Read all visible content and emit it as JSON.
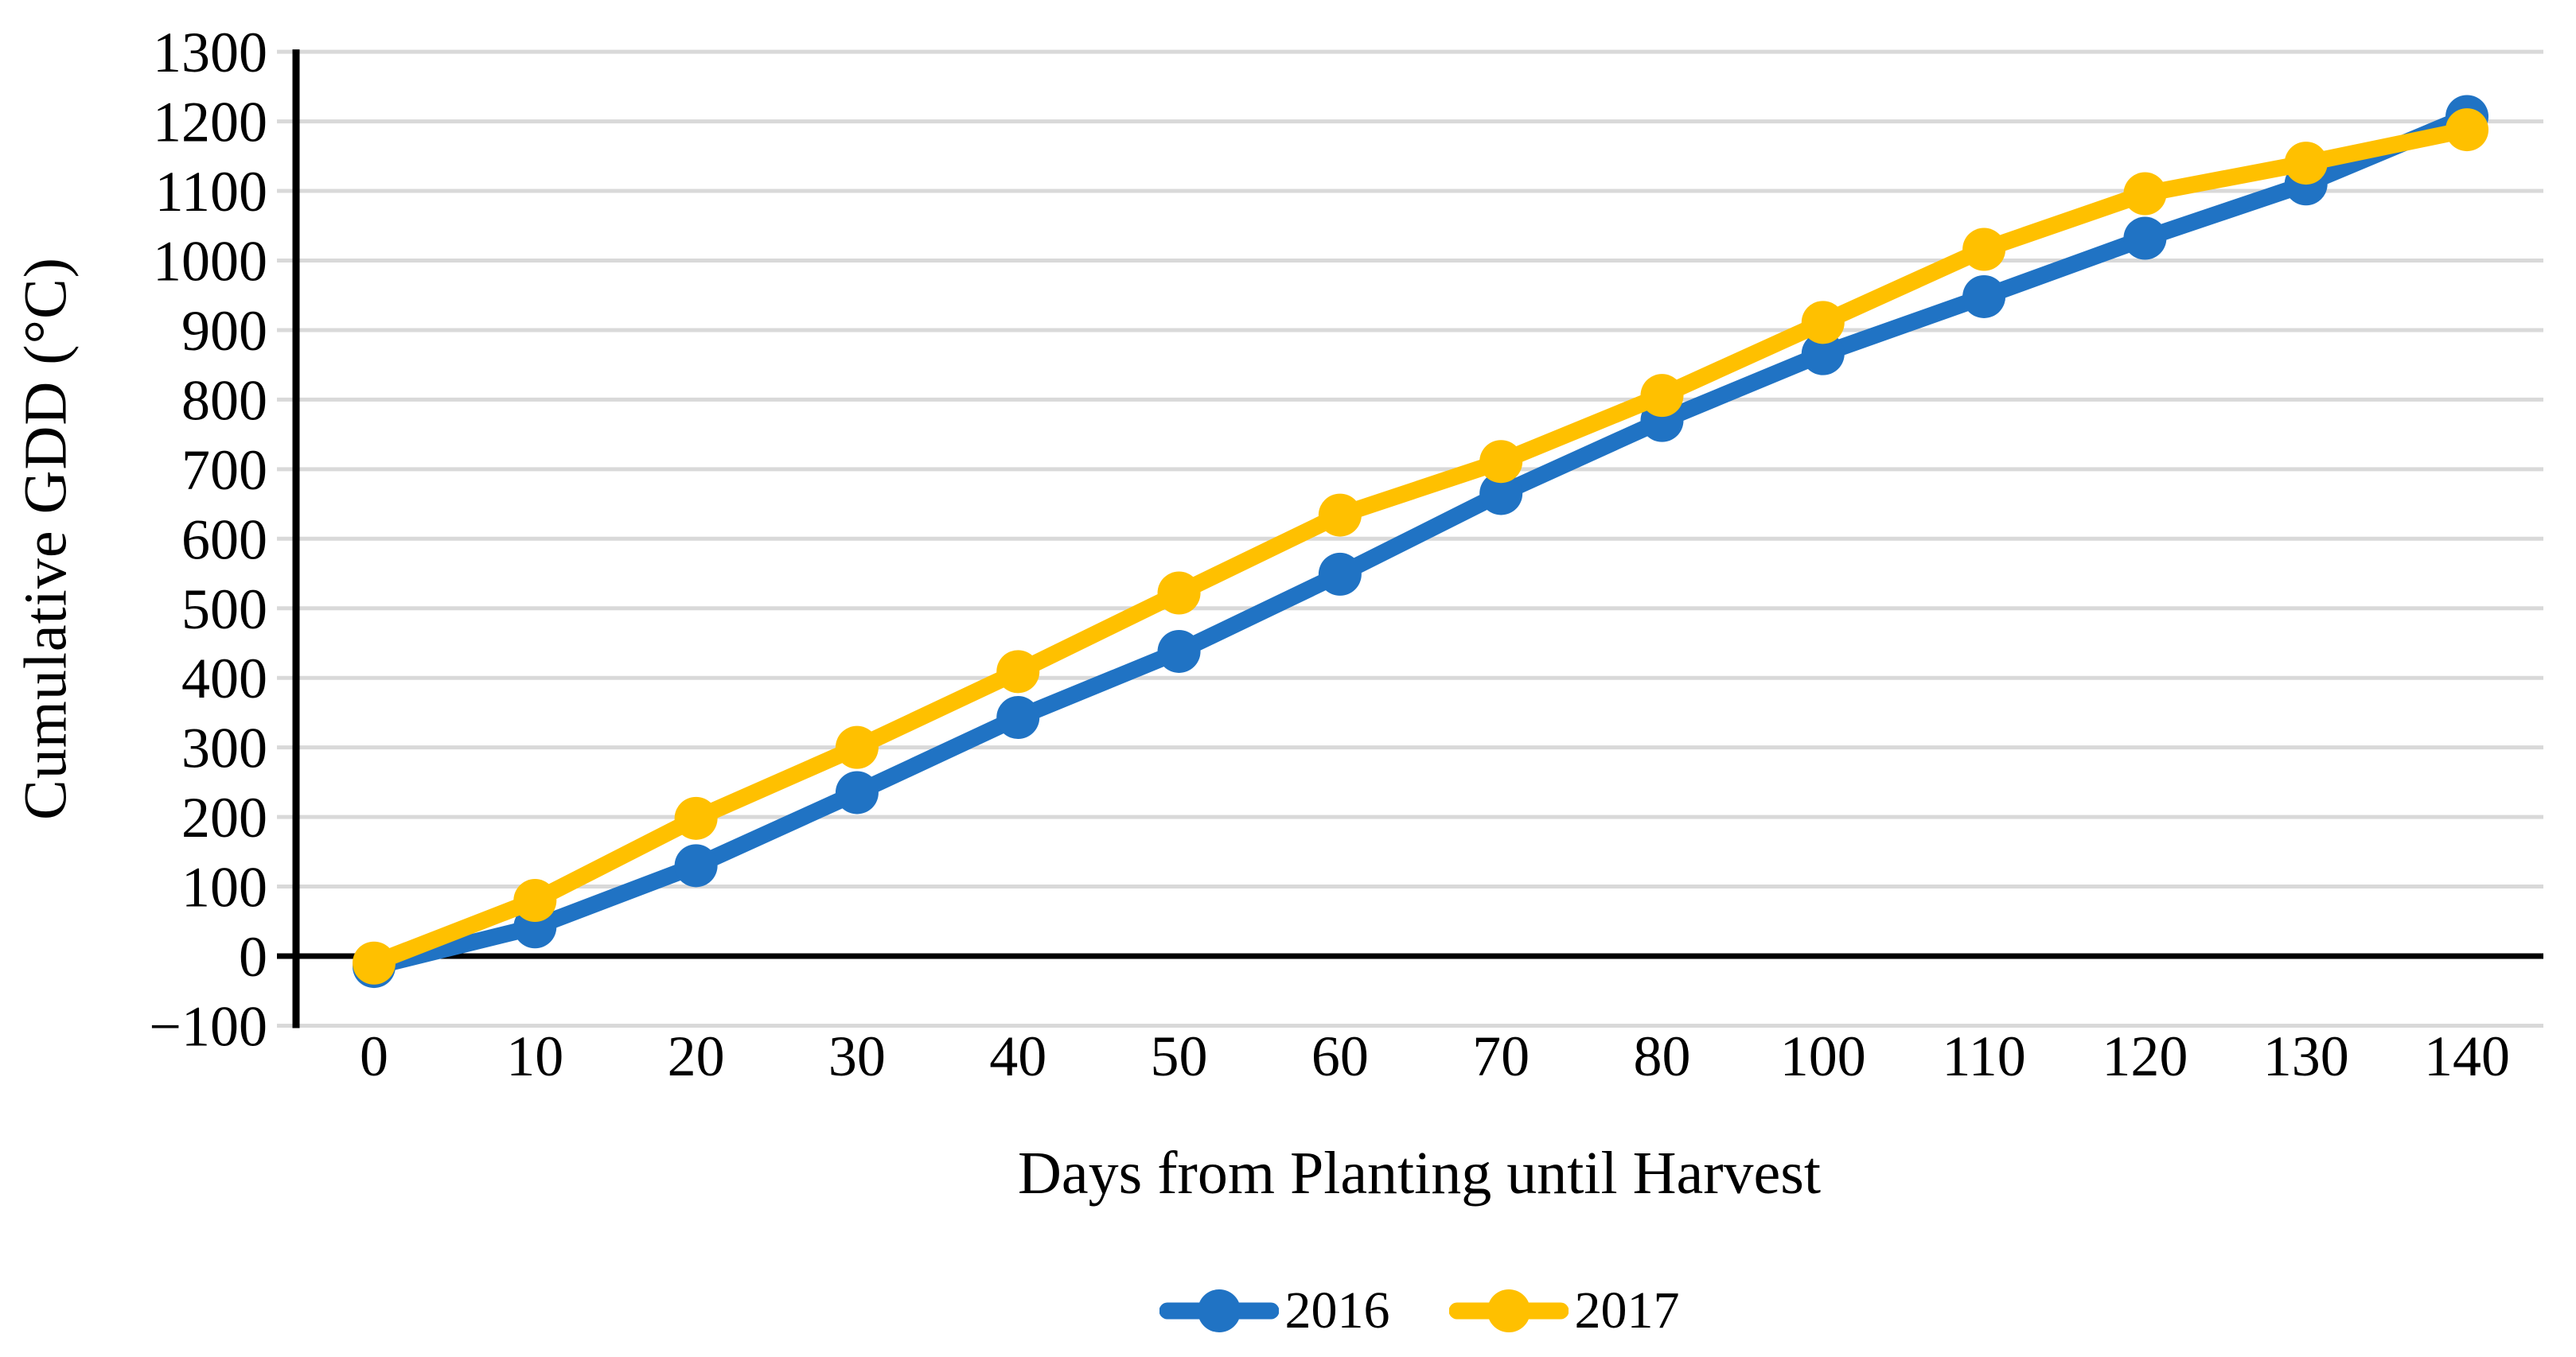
{
  "axes": {
    "x_title": "Days from Planting until Harvest",
    "y_title": "Cumulative GDD (°C)"
  },
  "legend": {
    "items": [
      {
        "label": "2016",
        "color": "#2073C4"
      },
      {
        "label": "2017",
        "color": "#FFC000"
      }
    ]
  },
  "chart_data": {
    "type": "line",
    "title": "",
    "xlabel": "Days from Planting until Harvest",
    "ylabel": "Cumulative GDD (°C)",
    "categories": [
      "0",
      "10",
      "20",
      "30",
      "40",
      "50",
      "60",
      "70",
      "80",
      "100",
      "110",
      "120",
      "130",
      "140"
    ],
    "y_ticks": [
      {
        "value": 1300,
        "label": "1300"
      },
      {
        "value": 1200,
        "label": "1200"
      },
      {
        "value": 1100,
        "label": "1100"
      },
      {
        "value": 1000,
        "label": "1000"
      },
      {
        "value": 900,
        "label": "900"
      },
      {
        "value": 800,
        "label": "800"
      },
      {
        "value": 700,
        "label": "700"
      },
      {
        "value": 600,
        "label": "600"
      },
      {
        "value": 500,
        "label": "500"
      },
      {
        "value": 400,
        "label": "400"
      },
      {
        "value": 300,
        "label": "300"
      },
      {
        "value": 200,
        "label": "200"
      },
      {
        "value": 100,
        "label": "100"
      },
      {
        "value": 0,
        "label": "0"
      },
      {
        "value": -100,
        "label": "−100"
      }
    ],
    "ylim": [
      -100,
      1300
    ],
    "grid": "horizontal",
    "legend_position": "bottom",
    "series": [
      {
        "name": "2016",
        "color": "#2073C4",
        "values": [
          -15,
          42,
          130,
          235,
          343,
          438,
          549,
          665,
          770,
          866,
          948,
          1032,
          1110,
          1207
        ]
      },
      {
        "name": "2017",
        "color": "#FFC000",
        "values": [
          -10,
          80,
          198,
          300,
          409,
          522,
          634,
          711,
          806,
          911,
          1016,
          1096,
          1140,
          1188
        ]
      }
    ],
    "style": {
      "gridline_color": "#D9D9D9",
      "axis_color": "#000000",
      "line_width": 21,
      "marker_radius": 27
    }
  }
}
